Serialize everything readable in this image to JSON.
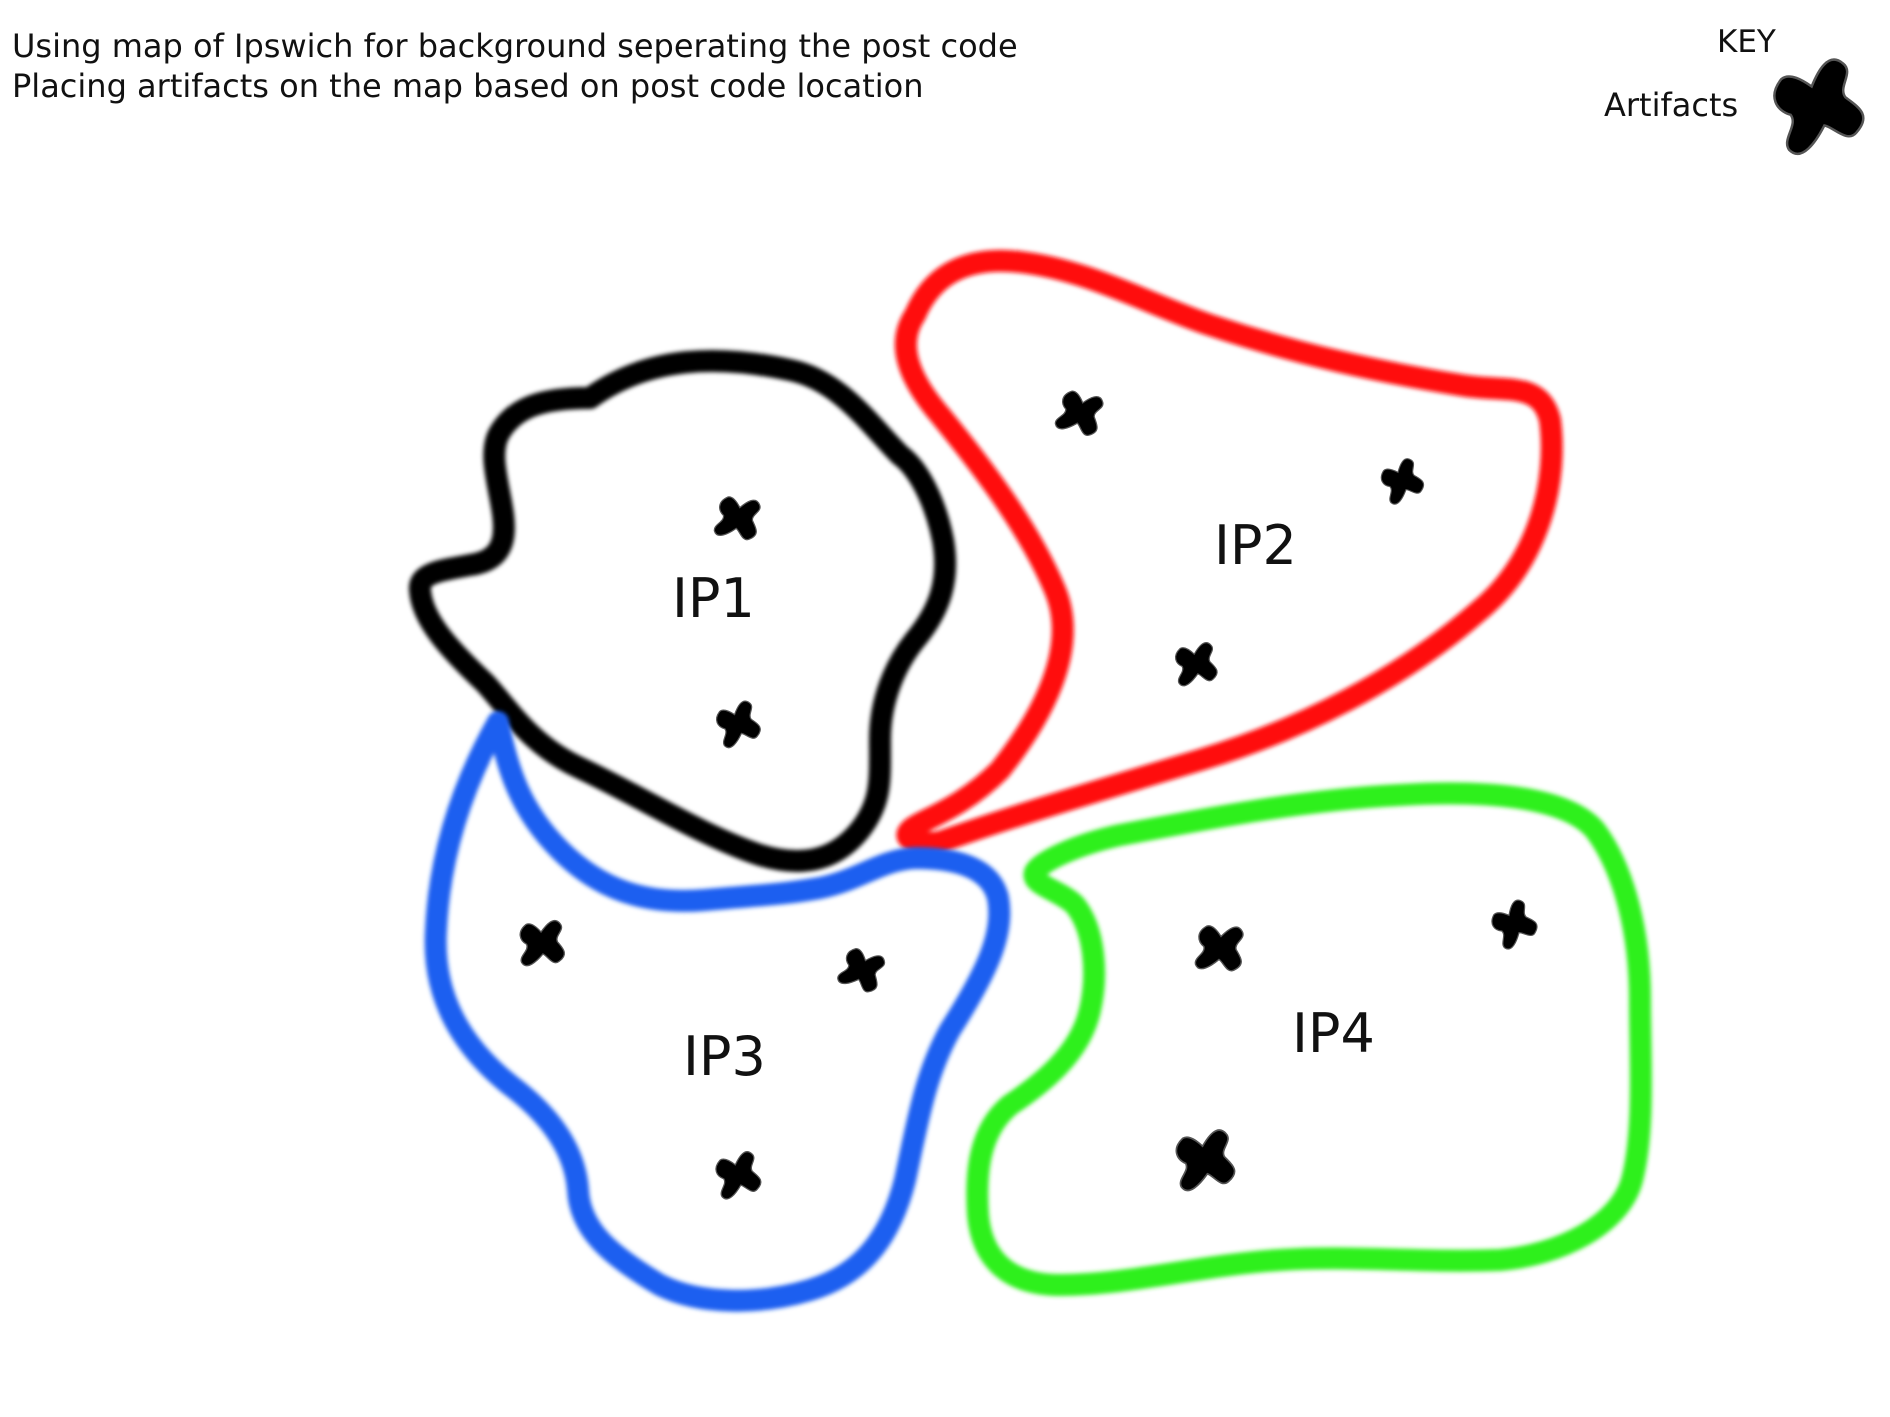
{
  "notes": [
    "Using map of Ipswich for background seperating the post code",
    "Placing artifacts on the map based on post code location"
  ],
  "key": {
    "title": "KEY",
    "entries": [
      {
        "label": "Artifacts",
        "icon": "artifact-blob-icon"
      }
    ]
  },
  "regions": [
    {
      "id": "ip1",
      "label": "IP1",
      "outline_color": "#000000",
      "artifact_count": 2
    },
    {
      "id": "ip2",
      "label": "IP2",
      "outline_color": "#ff1010",
      "artifact_count": 3
    },
    {
      "id": "ip3",
      "label": "IP3",
      "outline_color": "#1a5ff0",
      "artifact_count": 3
    },
    {
      "id": "ip4",
      "label": "IP4",
      "outline_color": "#2ff01a",
      "artifact_count": 3
    }
  ],
  "colors": {
    "artifact_fill": "#000000",
    "text": "#111111",
    "background": "#ffffff"
  }
}
